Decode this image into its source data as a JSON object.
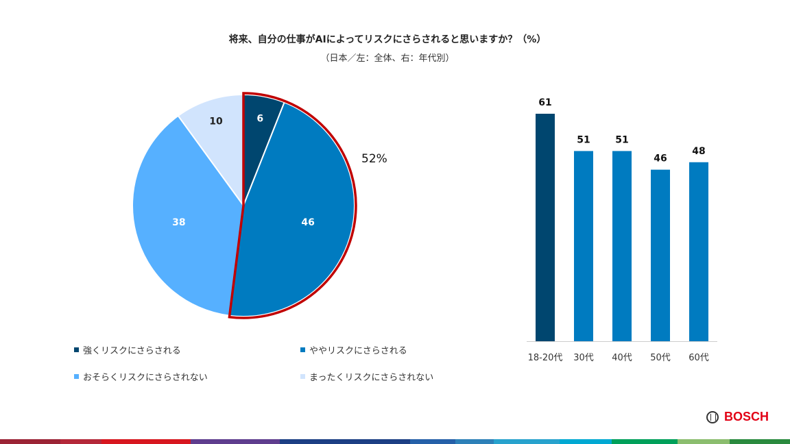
{
  "header": {
    "title": "将来、自分の仕事がAIによってリスクにさらされると思いますか？（%）",
    "subtitle": "（日本／左：全体、右：年代別）"
  },
  "chart_data": [
    {
      "type": "pie",
      "title": "全体",
      "slices": [
        {
          "label": "強くリスクにさらされる",
          "value": 6,
          "color": "#00466f"
        },
        {
          "label": "ややリスクにさらされる",
          "value": 46,
          "color": "#007bc0"
        },
        {
          "label": "おそらくリスクにさらされない",
          "value": 38,
          "color": "#56b0ff"
        },
        {
          "label": "まったくリスクにさらされない",
          "value": 10,
          "color": "#d1e4fd"
        }
      ],
      "highlight": {
        "label": "52%",
        "value": 52,
        "color": "#c00000"
      },
      "legend_position": "bottom"
    },
    {
      "type": "bar",
      "title": "年代別",
      "categories": [
        "18-20代",
        "30代",
        "40代",
        "50代",
        "60代"
      ],
      "values": [
        61,
        51,
        51,
        46,
        48
      ],
      "colors": [
        "#00466f",
        "#007bc0",
        "#007bc0",
        "#007bc0",
        "#007bc0"
      ],
      "ylim": [
        0,
        61
      ],
      "grid": false
    }
  ],
  "brand": {
    "name": "BOSCH",
    "color": "#e20015"
  }
}
